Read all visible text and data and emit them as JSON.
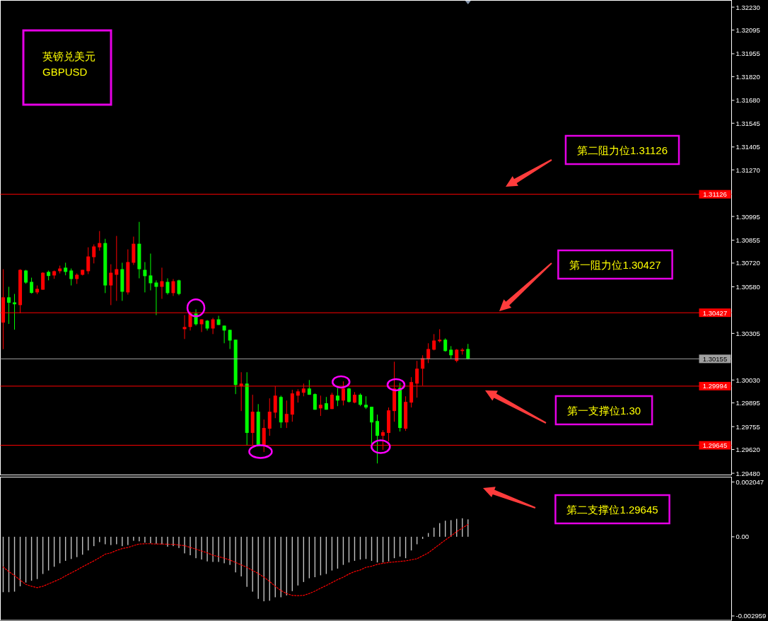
{
  "chart_data": [
    {
      "type": "candlestick",
      "title": "英镑兑美元",
      "subtitle": "GBPUSD",
      "categories": [
        null,
        null,
        null,
        null,
        null,
        null,
        null,
        null,
        null,
        null,
        null,
        null,
        null,
        null,
        null,
        null,
        null,
        null,
        null,
        null,
        null,
        null,
        null,
        null,
        null,
        null,
        null,
        null,
        null,
        null,
        null,
        null,
        null,
        null,
        null,
        null,
        null,
        null,
        null,
        null,
        null,
        null,
        null,
        null,
        null,
        null,
        null,
        null,
        null,
        null,
        null,
        null,
        null,
        null,
        null,
        null,
        null,
        null,
        null,
        null,
        null,
        null,
        null,
        null,
        null,
        null,
        null,
        null,
        null,
        null,
        null,
        null,
        null,
        null,
        null,
        null,
        null,
        null,
        null,
        null,
        null,
        null,
        null,
        null,
        null,
        null,
        null,
        null,
        null,
        null,
        null,
        null,
        null,
        null,
        null,
        null,
        null,
        null,
        null,
        null,
        null,
        null,
        null,
        null,
        null,
        null,
        null,
        null,
        null,
        null,
        null,
        null,
        null,
        null,
        null,
        null,
        null,
        null,
        null,
        null,
        null,
        null,
        null,
        null,
        null,
        null,
        null,
        null,
        null
      ],
      "ohlc": [
        [
          1.30369,
          1.30684,
          1.30212,
          1.30518
        ],
        [
          1.30518,
          1.3058,
          1.30361,
          1.30486
        ],
        [
          1.30488,
          1.30538,
          1.30327,
          1.30477
        ],
        [
          1.30472,
          1.30684,
          1.30424,
          1.3068
        ],
        [
          1.30676,
          1.3068,
          1.30598,
          1.30605
        ],
        [
          1.30609,
          1.30634,
          1.3054,
          1.30544
        ],
        [
          1.30547,
          1.30588,
          1.30536,
          1.30568
        ],
        [
          1.30563,
          1.30666,
          1.30563,
          1.30663
        ],
        [
          1.30668,
          1.30676,
          1.30618,
          1.30644
        ],
        [
          1.30647,
          1.30676,
          1.30627,
          1.30672
        ],
        [
          1.30672,
          1.30705,
          1.30659,
          1.30688
        ],
        [
          1.30693,
          1.30722,
          1.30648,
          1.30668
        ],
        [
          1.30676,
          1.30688,
          1.30588,
          1.30626
        ],
        [
          1.30626,
          1.30659,
          1.30597,
          1.30651
        ],
        [
          1.30651,
          1.3068,
          1.30647,
          1.3068
        ],
        [
          1.30672,
          1.30813,
          1.30655,
          1.30759
        ],
        [
          1.30755,
          1.3083,
          1.30718,
          1.30818
        ],
        [
          1.30813,
          1.30909,
          1.30793,
          1.30838
        ],
        [
          1.30838,
          1.30863,
          1.30543,
          1.30588
        ],
        [
          1.30588,
          1.30713,
          1.30472,
          1.30663
        ],
        [
          1.30651,
          1.3088,
          1.30497,
          1.30684
        ],
        [
          1.30684,
          1.30722,
          1.30497,
          1.30551
        ],
        [
          1.30547,
          1.30801,
          1.30534,
          1.30726
        ],
        [
          1.30722,
          1.30876,
          1.30709,
          1.30834
        ],
        [
          1.30834,
          1.30963,
          1.3063,
          1.30684
        ],
        [
          1.3068,
          1.30726,
          1.30547,
          1.30643
        ],
        [
          1.30647,
          1.30776,
          1.30559,
          1.30601
        ],
        [
          1.30605,
          1.30618,
          1.30413,
          1.3058
        ],
        [
          1.3058,
          1.30693,
          1.30509,
          1.30613
        ],
        [
          1.30609,
          1.3063,
          1.30534,
          1.30543
        ],
        [
          1.30543,
          1.30626,
          1.30526,
          1.30613
        ],
        [
          1.30618,
          1.30622,
          1.3053,
          1.30538
        ],
        [
          1.3033,
          1.30413,
          1.30272,
          1.30343
        ],
        [
          1.30343,
          1.30434,
          1.30322,
          1.30424
        ],
        [
          1.30422,
          1.30447,
          1.30351,
          1.30359
        ],
        [
          1.30359,
          1.30388,
          1.30313,
          1.30388
        ],
        [
          1.3038,
          1.30384,
          1.30322,
          1.30334
        ],
        [
          1.30334,
          1.30397,
          1.30301,
          1.30388
        ],
        [
          1.30388,
          1.30409,
          1.30355,
          1.30355
        ],
        [
          1.30351,
          1.30351,
          1.30247,
          1.30322
        ],
        [
          1.30326,
          1.30326,
          1.30213,
          1.30263
        ],
        [
          1.30268,
          1.30268,
          1.29947,
          1.30001
        ],
        [
          1.29993,
          1.30076,
          1.29847,
          1.30009
        ],
        [
          1.30009,
          1.30076,
          1.29643,
          1.29718
        ],
        [
          1.29718,
          1.29943,
          1.29643,
          1.29843
        ],
        [
          1.29843,
          1.29888,
          1.29643,
          1.29643
        ],
        [
          1.29643,
          1.29797,
          1.29605,
          1.29747
        ],
        [
          1.29743,
          1.29922,
          1.29701,
          1.29843
        ],
        [
          1.29838,
          1.29993,
          1.29805,
          1.29938
        ],
        [
          1.2993,
          1.29938,
          1.29747,
          1.2978
        ],
        [
          1.2978,
          1.29909,
          1.29747,
          1.2983
        ],
        [
          1.29826,
          1.29972,
          1.29784,
          1.29951
        ],
        [
          1.29938,
          1.29976,
          1.29897,
          1.29963
        ],
        [
          1.29955,
          1.30009,
          1.29934,
          1.2998
        ],
        [
          1.2998,
          1.3003,
          1.29943,
          1.29943
        ],
        [
          1.29947,
          1.29951,
          1.29855,
          1.29855
        ],
        [
          1.29863,
          1.29938,
          1.29818,
          1.29884
        ],
        [
          1.29893,
          1.2993,
          1.29855,
          1.29855
        ],
        [
          1.29859,
          1.29955,
          1.29859,
          1.29943
        ],
        [
          1.29938,
          1.29984,
          1.29876,
          1.29909
        ],
        [
          1.29909,
          1.30022,
          1.2988,
          1.2998
        ],
        [
          1.2998,
          1.29984,
          1.29897,
          1.29901
        ],
        [
          1.29897,
          1.29959,
          1.29893,
          1.29943
        ],
        [
          1.29943,
          1.29951,
          1.29876,
          1.29884
        ],
        [
          1.29884,
          1.29934,
          1.29859,
          1.29868
        ],
        [
          1.29872,
          1.29872,
          1.29643,
          1.2978
        ],
        [
          1.29788,
          1.29826,
          1.29538,
          1.29701
        ],
        [
          1.29701,
          1.29734,
          1.29618,
          1.29722
        ],
        [
          1.29718,
          1.29868,
          1.29668,
          1.29851
        ],
        [
          1.29847,
          1.30138,
          1.29784,
          1.2998
        ],
        [
          1.29984,
          1.30013,
          1.29726,
          1.29747
        ],
        [
          1.29743,
          1.29934,
          1.2973,
          1.29901
        ],
        [
          1.29897,
          1.30047,
          1.29868,
          1.30018
        ],
        [
          1.30009,
          1.30143,
          1.29926,
          1.30097
        ],
        [
          1.30097,
          1.30176,
          1.29997,
          1.30159
        ],
        [
          1.30155,
          1.30247,
          1.3013,
          1.30213
        ],
        [
          1.30209,
          1.30301,
          1.30205,
          1.30263
        ],
        [
          1.30259,
          1.3033,
          1.30251,
          1.30268
        ],
        [
          1.30268,
          1.30276,
          1.30197,
          1.30201
        ],
        [
          1.30209,
          1.3023,
          1.30155,
          1.30176
        ],
        [
          1.30143,
          1.30213,
          1.30134,
          1.30209
        ],
        [
          1.30201,
          1.30218,
          1.3018,
          1.30209
        ],
        [
          1.30213,
          1.30243,
          1.30151,
          1.30155
        ],
        null,
        null,
        null,
        null,
        null,
        null,
        null,
        null,
        null,
        null,
        null,
        null,
        null,
        null,
        null,
        null,
        null,
        null,
        null,
        null,
        null,
        null,
        null,
        null,
        null,
        null,
        null,
        null,
        null,
        null,
        null,
        null,
        null,
        null,
        null,
        null,
        null,
        null,
        null,
        null,
        null,
        null,
        null,
        null,
        null,
        null
      ],
      "colors": [
        "#ff0000",
        "#00ff00",
        "#00ff00",
        "#ff0000",
        "#00ff00",
        "#00ff00",
        "#ff0000",
        "#ff0000",
        "#00ff00",
        "#ff0000",
        "#ff0000",
        "#00ff00",
        "#00ff00",
        "#ff0000",
        "#ff0000",
        "#ff0000",
        "#ff0000",
        "#ff0000",
        "#00ff00",
        "#ff0000",
        "#ff0000",
        "#00ff00",
        "#ff0000",
        "#ff0000",
        "#00ff00",
        "#00ff00",
        "#00ff00",
        "#00ff00",
        "#ff0000",
        "#00ff00",
        "#ff0000",
        "#00ff00",
        "#ff0000",
        "#ff0000",
        "#00ff00",
        "#ff0000",
        "#00ff00",
        "#ff0000",
        "#00ff00",
        "#00ff00",
        "#00ff00",
        "#00ff00",
        "#ff0000",
        "#00ff00",
        "#ff0000",
        "#00ff00",
        "#ff0000",
        "#ff0000",
        "#ff0000",
        "#00ff00",
        "#ff0000",
        "#ff0000",
        "#ff0000",
        "#ff0000",
        "#00ff00",
        "#00ff00",
        "#ff0000",
        "#00ff00",
        "#ff0000",
        "#00ff00",
        "#ff0000",
        "#00ff00",
        "#ff0000",
        "#00ff00",
        "#00ff00",
        "#00ff00",
        "#00ff00",
        "#ff0000",
        "#ff0000",
        "#ff0000",
        "#00ff00",
        "#ff0000",
        "#ff0000",
        "#ff0000",
        "#ff0000",
        "#ff0000",
        "#ff0000",
        "#ff0000",
        "#00ff00",
        "#00ff00",
        "#ff0000",
        "#ff0000",
        "#00ff00",
        null,
        null,
        null,
        null,
        null,
        null,
        null,
        null,
        null,
        null,
        null,
        null,
        null,
        null,
        null,
        null,
        null,
        null,
        null,
        null,
        null,
        null,
        null,
        null,
        null,
        null,
        null,
        null,
        null,
        null,
        null,
        null,
        null,
        null,
        null,
        null,
        null,
        null,
        null,
        null,
        null,
        null,
        null,
        null,
        null,
        null
      ],
      "ylim": [
        1.2947,
        1.3227
      ],
      "yticks": [
        {
          "value": 1.3223,
          "label": "1.32230"
        },
        1.32095,
        1.31955,
        {
          "value": 1.3182,
          "label": "1.31820"
        },
        {
          "value": 1.3168,
          "label": "1.31680"
        },
        1.31545,
        1.31405,
        {
          "value": 1.3127,
          "label": "1.31270"
        },
        1.30995,
        1.30855,
        {
          "value": 1.3072,
          "label": "1.30720"
        },
        {
          "value": 1.3058,
          "label": "1.30580"
        },
        1.30305,
        {
          "value": 1.3003,
          "label": "1.30030"
        },
        1.29895,
        1.29755,
        {
          "value": 1.2962,
          "label": "1.29620"
        },
        {
          "value": 1.2948,
          "label": "1.29480"
        }
      ],
      "ref_lines": [
        {
          "axis": "y",
          "value": 1.31126,
          "label": "1.31126",
          "color": "#ff0000"
        },
        {
          "axis": "y",
          "value": 1.30427,
          "label": "1.30427",
          "color": "#ff0000"
        },
        {
          "axis": "y",
          "value": 1.30155,
          "label": "1.30155",
          "color": "#a0a0a0"
        },
        {
          "axis": "y",
          "value": 1.29994,
          "label": "1.29994",
          "color": "#ff0000"
        },
        {
          "axis": "y",
          "value": 1.29645,
          "label": "1.29645",
          "color": "#ff0000"
        }
      ],
      "annotations": [
        "第二阻力位1.31126",
        "第一阻力位1.30427",
        "第一支撑位1.30",
        "第二支撑位1.29645"
      ]
    },
    {
      "type": "bar",
      "categories": [
        null,
        null,
        null,
        null,
        null,
        null,
        null,
        null,
        null,
        null,
        null,
        null,
        null,
        null,
        null,
        null,
        null,
        null,
        null,
        null,
        null,
        null,
        null,
        null,
        null,
        null,
        null,
        null,
        null,
        null,
        null,
        null,
        null,
        null,
        null,
        null,
        null,
        null,
        null,
        null,
        null,
        null,
        null,
        null,
        null,
        null,
        null,
        null,
        null,
        null,
        null,
        null,
        null,
        null,
        null,
        null,
        null,
        null,
        null,
        null,
        null,
        null,
        null,
        null,
        null,
        null,
        null,
        null,
        null,
        null,
        null,
        null,
        null,
        null,
        null,
        null,
        null,
        null,
        null,
        null,
        null,
        null,
        null,
        null,
        null,
        null,
        null,
        null,
        null,
        null,
        null,
        null,
        null,
        null,
        null,
        null,
        null,
        null,
        null,
        null,
        null,
        null,
        null,
        null,
        null,
        null,
        null,
        null,
        null,
        null,
        null,
        null,
        null,
        null,
        null,
        null,
        null,
        null,
        null,
        null,
        null,
        null,
        null,
        null,
        null,
        null,
        null,
        null,
        null
      ],
      "series": [
        {
          "type": "bar",
          "color": "#c0c0c0",
          "values": [
            -0.00207,
            -0.00207,
            -0.00205,
            -0.00185,
            -0.00171,
            -0.00164,
            -0.00158,
            -0.00139,
            -0.00126,
            -0.00112,
            -0.00099,
            -0.0009,
            -0.00083,
            -0.00076,
            -0.00067,
            -0.00051,
            -0.00035,
            -0.0002,
            -0.00028,
            -0.00031,
            -0.00028,
            -0.00035,
            -0.00031,
            -0.00015,
            -0.00017,
            -0.00022,
            -0.00024,
            -0.00026,
            -0.00028,
            -0.00037,
            -0.00035,
            -0.00042,
            -0.00062,
            -0.00069,
            -0.0008,
            -0.00085,
            -0.00092,
            -0.00094,
            -0.00094,
            -0.00099,
            -0.00105,
            -0.00133,
            -0.00148,
            -0.00187,
            -0.00205,
            -0.00232,
            -0.00241,
            -0.00239,
            -0.00226,
            -0.00226,
            -0.00219,
            -0.00203,
            -0.00182,
            -0.00169,
            -0.00155,
            -0.00151,
            -0.00144,
            -0.00139,
            -0.00126,
            -0.00119,
            -0.00105,
            -0.00096,
            -0.0009,
            -0.00085,
            -0.00083,
            -0.0009,
            -0.00096,
            -0.00096,
            -0.00092,
            -0.0008,
            -0.00074,
            -0.0008,
            -0.00051,
            -0.00028,
            -8e-05,
            0.00014,
            0.00034,
            0.00051,
            0.0006,
            0.00062,
            0.00067,
            0.00069,
            0.00065,
            null,
            null,
            null,
            null,
            null,
            null,
            null,
            null,
            null,
            null,
            null,
            null,
            null,
            null,
            null,
            null,
            null,
            null,
            null,
            null,
            null,
            null,
            null,
            null,
            null,
            null,
            null,
            null,
            null,
            null,
            null,
            null,
            null,
            null,
            null,
            null,
            null,
            null,
            null,
            null,
            null,
            null,
            null,
            null,
            null,
            null
          ]
        },
        {
          "type": "line",
          "color": "#ff0000",
          "line_style": "dotted",
          "values": [
            -0.00113,
            -0.0013,
            -0.00145,
            -0.00162,
            -0.00178,
            -0.00185,
            -0.0019,
            -0.00185,
            -0.00176,
            -0.00167,
            -0.00158,
            -0.00146,
            -0.00135,
            -0.00124,
            -0.00112,
            -0.00101,
            -0.0009,
            -0.00078,
            -0.00065,
            -0.0006,
            -0.00051,
            -0.00044,
            -0.0004,
            -0.00033,
            -0.00027,
            -0.00026,
            -0.00026,
            -0.00027,
            -0.00027,
            -0.00028,
            -0.00028,
            -0.00031,
            -0.00033,
            -0.0004,
            -0.00046,
            -0.00053,
            -0.0006,
            -0.00069,
            -0.00074,
            -0.0008,
            -0.00087,
            -0.00096,
            -0.00105,
            -0.00114,
            -0.00126,
            -0.00137,
            -0.00151,
            -0.00167,
            -0.00185,
            -0.00201,
            -0.00212,
            -0.00219,
            -0.0022,
            -0.00219,
            -0.00212,
            -0.00203,
            -0.00192,
            -0.00182,
            -0.00171,
            -0.0016,
            -0.00151,
            -0.00139,
            -0.0013,
            -0.00124,
            -0.00114,
            -0.0011,
            -0.00103,
            -0.00099,
            -0.00096,
            -0.00094,
            -0.00092,
            -0.0009,
            -0.00086,
            -0.00082,
            -0.00071,
            -0.0006,
            -0.00044,
            -0.00028,
            -0.00012,
            3e-05,
            0.00019,
            0.00033,
            0.00046,
            null,
            null,
            null,
            null,
            null,
            null,
            null,
            null,
            null,
            null,
            null,
            null,
            null,
            null,
            null,
            null,
            null,
            null,
            null,
            null,
            null,
            null,
            null,
            null,
            null,
            null,
            null,
            null,
            null,
            null,
            null,
            null,
            null,
            null,
            null,
            null,
            null,
            null,
            null,
            null,
            null,
            null,
            null,
            null,
            null,
            null
          ]
        }
      ],
      "ylim": [
        -0.00312,
        0.00223
      ],
      "yticks": [
        {
          "value": 0.002047,
          "label": "0.002047"
        },
        {
          "value": 0,
          "label": "0.00"
        },
        {
          "value": -0.002959,
          "label": "-0.002959"
        }
      ]
    }
  ]
}
